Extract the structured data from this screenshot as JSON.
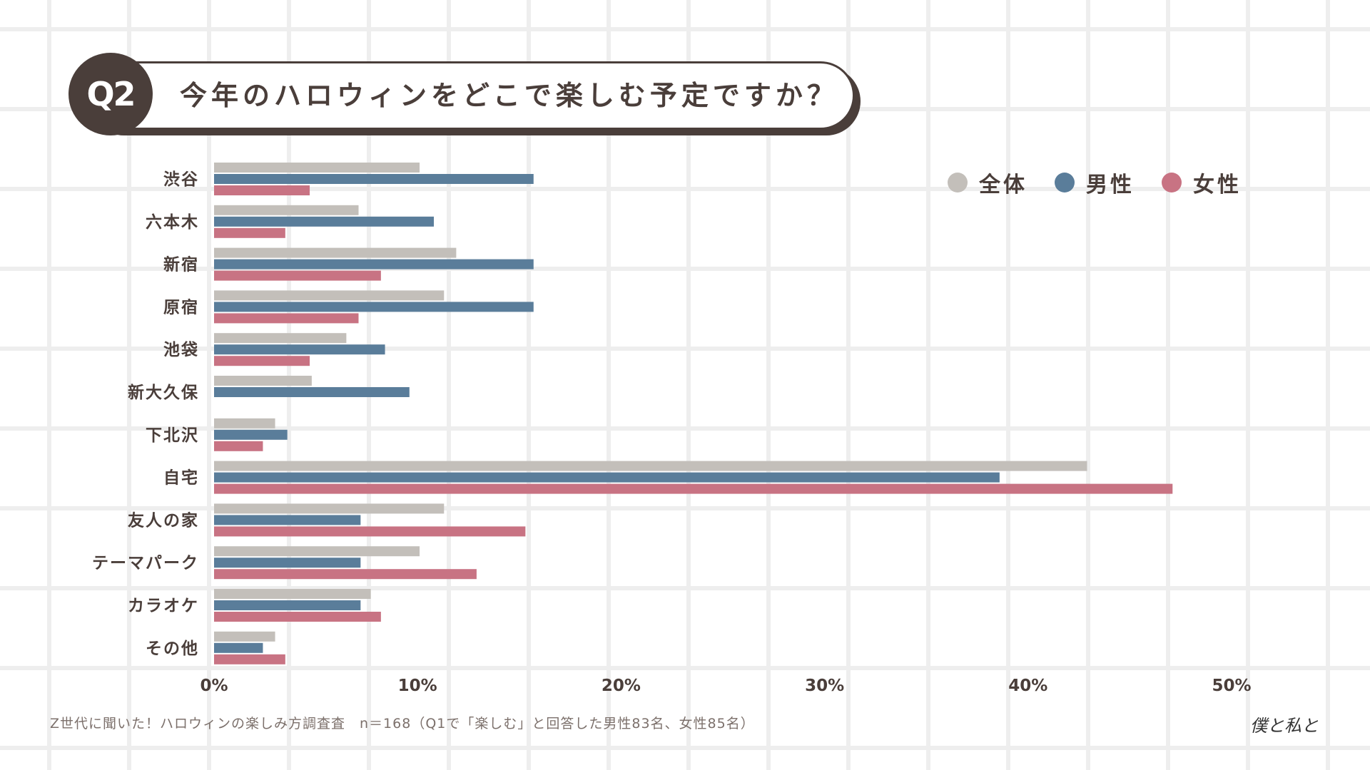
{
  "badge": "Q2",
  "title": "今年のハロウィンをどこで楽しむ予定ですか？",
  "legend": [
    {
      "label": "全体",
      "color": "#c3bfba"
    },
    {
      "label": "男性",
      "color": "#5a7d9a"
    },
    {
      "label": "女性",
      "color": "#c87383"
    }
  ],
  "chart_data": {
    "type": "bar",
    "orientation": "horizontal",
    "title": "今年のハロウィンをどこで楽しむ予定ですか？",
    "categories": [
      "渋谷",
      "六本木",
      "新宿",
      "原宿",
      "池袋",
      "新大久保",
      "下北沢",
      "自宅",
      "友人の家",
      "テーマパーク",
      "カラオケ",
      "その他"
    ],
    "series": [
      {
        "name": "全体",
        "color": "#c3bfba",
        "values": [
          10.1,
          7.1,
          11.9,
          11.3,
          6.5,
          4.8,
          3.0,
          42.9,
          11.3,
          10.1,
          7.7,
          3.0
        ]
      },
      {
        "name": "男性",
        "color": "#5a7d9a",
        "values": [
          15.7,
          10.8,
          15.7,
          15.7,
          8.4,
          9.6,
          3.6,
          38.6,
          7.2,
          7.2,
          7.2,
          2.4
        ]
      },
      {
        "name": "女性",
        "color": "#c87383",
        "values": [
          4.7,
          3.5,
          8.2,
          7.1,
          4.7,
          0,
          2.4,
          47.1,
          15.3,
          12.9,
          8.2,
          3.5
        ]
      }
    ],
    "xlim": [
      0,
      50
    ],
    "xticks": [
      "0%",
      "10%",
      "20%",
      "30%",
      "40%",
      "50%"
    ],
    "xlabel": "",
    "ylabel": "",
    "grid": true,
    "legend_position": "top-right"
  },
  "footnote": "Z世代に聞いた！ハロウィンの楽しみ方調査査　n＝168（Q1で「楽しむ」と回答した男性83名、女性85名）",
  "signature": "僕と私と"
}
